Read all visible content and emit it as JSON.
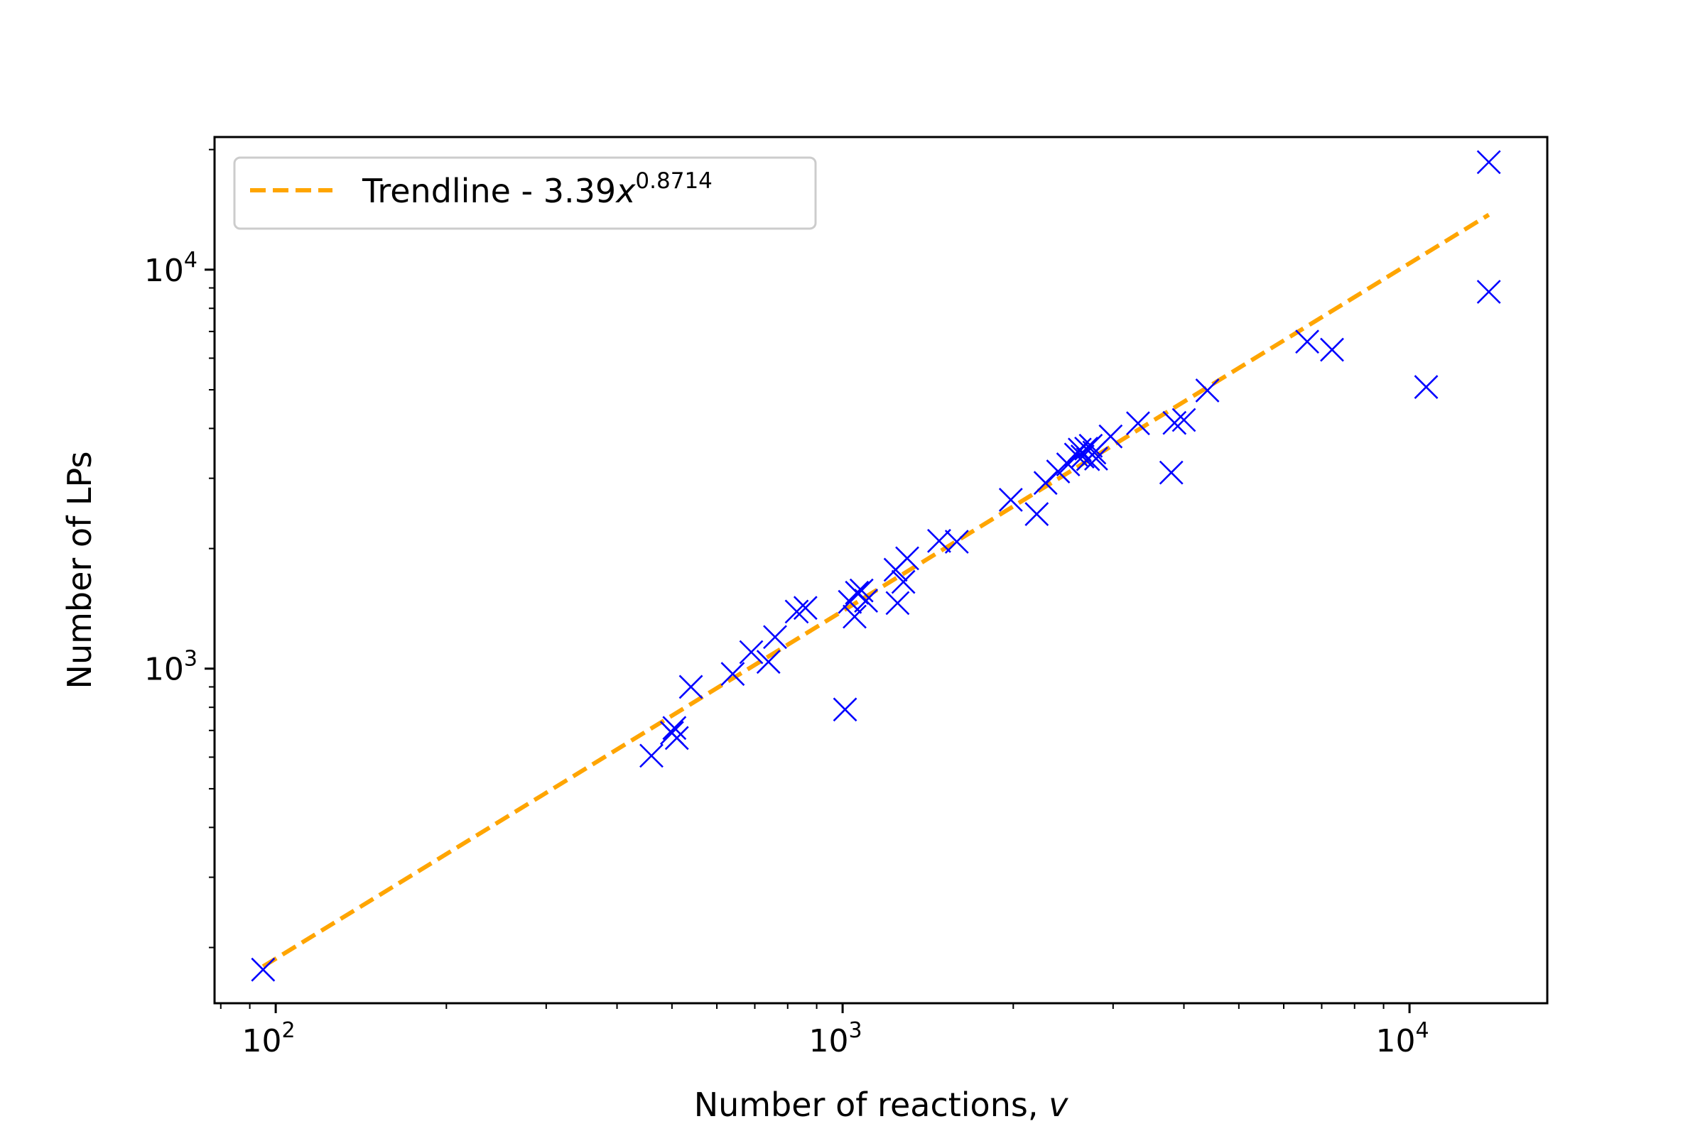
{
  "chart_data": {
    "type": "scatter",
    "xscale": "log",
    "yscale": "log",
    "xlim": [
      78,
      17500
    ],
    "ylim": [
      145,
      21500
    ],
    "xlabel": "Number of reactions, ",
    "xlabel_var": "v",
    "ylabel": "Number of LPs",
    "x_ticks": [
      {
        "value": 100,
        "base": "10",
        "exp": "2"
      },
      {
        "value": 1000,
        "base": "10",
        "exp": "3"
      },
      {
        "value": 10000,
        "base": "10",
        "exp": "4"
      }
    ],
    "y_ticks": [
      {
        "value": 1000,
        "base": "10",
        "exp": "3"
      },
      {
        "value": 10000,
        "base": "10",
        "exp": "4"
      }
    ],
    "grid": false,
    "legend": {
      "placement": "top-left",
      "text": "Trendline - 3.39",
      "var": "x",
      "exp": "0.8714"
    },
    "colors": {
      "trendline": "#FFA500",
      "markers": "#0000FF"
    },
    "trendline": {
      "coefficient": 3.39,
      "exponent": 0.8714,
      "x_range": [
        95,
        13800
      ]
    },
    "series": [
      {
        "marker": "x",
        "points": [
          [
            95,
            176
          ],
          [
            460,
            605
          ],
          [
            500,
            690
          ],
          [
            510,
            670
          ],
          [
            505,
            710
          ],
          [
            540,
            900
          ],
          [
            640,
            970
          ],
          [
            690,
            1100
          ],
          [
            740,
            1040
          ],
          [
            760,
            1200
          ],
          [
            830,
            1390
          ],
          [
            860,
            1420
          ],
          [
            1010,
            790
          ],
          [
            1030,
            1470
          ],
          [
            1050,
            1350
          ],
          [
            1060,
            1550
          ],
          [
            1080,
            1570
          ],
          [
            1100,
            1480
          ],
          [
            1240,
            1770
          ],
          [
            1250,
            1460
          ],
          [
            1280,
            1650
          ],
          [
            1300,
            1890
          ],
          [
            1480,
            2090
          ],
          [
            1590,
            2080
          ],
          [
            1980,
            2650
          ],
          [
            2200,
            2440
          ],
          [
            2280,
            2920
          ],
          [
            2400,
            3120
          ],
          [
            2500,
            3250
          ],
          [
            2580,
            3440
          ],
          [
            2620,
            3540
          ],
          [
            2650,
            3400
          ],
          [
            2690,
            3560
          ],
          [
            2710,
            3350
          ],
          [
            2740,
            3620
          ],
          [
            2780,
            3480
          ],
          [
            2800,
            3360
          ],
          [
            2970,
            3820
          ],
          [
            3320,
            4120
          ],
          [
            3800,
            3100
          ],
          [
            3850,
            4130
          ],
          [
            4000,
            4200
          ],
          [
            4400,
            4980
          ],
          [
            6600,
            6600
          ],
          [
            7300,
            6300
          ],
          [
            10700,
            5080
          ],
          [
            13800,
            18600
          ],
          [
            13800,
            8800
          ]
        ]
      }
    ]
  }
}
